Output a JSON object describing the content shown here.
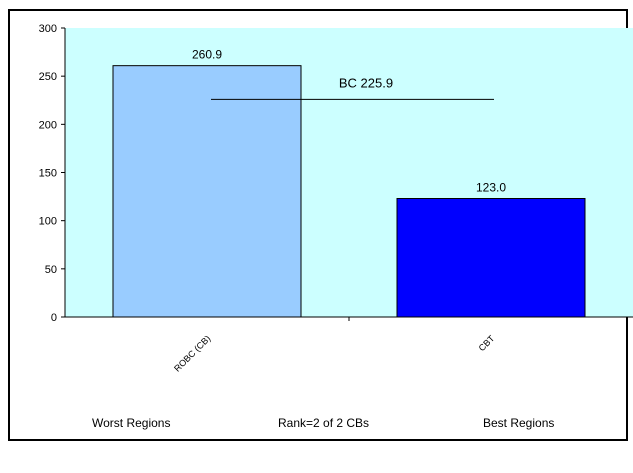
{
  "chart_data": {
    "type": "bar",
    "categories": [
      "ROBC (CB)",
      "CBT"
    ],
    "values": [
      260.9,
      123.0
    ],
    "value_labels": [
      "260.9",
      "123.0"
    ],
    "bar_colors": [
      "#99ccff",
      "#0000ff"
    ],
    "ylim": [
      0,
      300
    ],
    "yticks": [
      0,
      50,
      100,
      150,
      200,
      250,
      300
    ],
    "plot_background": "#ccffff",
    "grid": false,
    "reference_line": {
      "label": "BC 225.9",
      "value": 225.9
    }
  },
  "footer": {
    "left": "Worst Regions",
    "center": "Rank=2 of 2 CBs",
    "right": "Best Regions"
  }
}
